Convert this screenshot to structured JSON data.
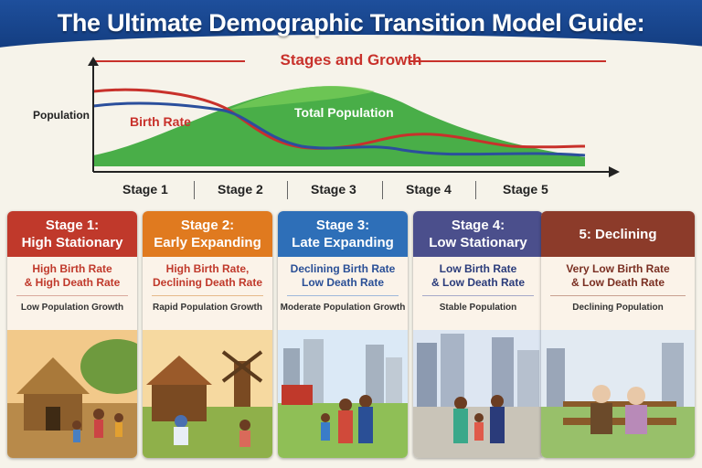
{
  "header": {
    "title": "The Ultimate Demographic Transition Model Guide:",
    "subtitle": "Stages and Growth"
  },
  "chart": {
    "ylabel": "Population",
    "series_labels": {
      "birth_rate": "Birth Rate",
      "total_population": "Total Population"
    },
    "colors": {
      "birth_rate": "#c8312b",
      "death_rate": "#2b4f9c",
      "total_population": "#3aa83a"
    }
  },
  "stages_axis": [
    "Stage 1",
    "Stage 2",
    "Stage 3",
    "Stage 4",
    "Stage 5"
  ],
  "cards": [
    {
      "title_line1": "Stage 1:",
      "title_line2": "High Stationary",
      "rate_line1": "High Birth Rate",
      "rate_line2": "& High Death Rate",
      "growth": "Low Population Growth",
      "color": "#c0392b",
      "text_color": "#c0392b"
    },
    {
      "title_line1": "Stage 2:",
      "title_line2": "Early Expanding",
      "rate_line1": "High Birth Rate,",
      "rate_line2": "Declining Death Rate",
      "growth": "Rapid Population Growth",
      "color": "#e07a1f",
      "text_color": "#c0392b"
    },
    {
      "title_line1": "Stage 3:",
      "title_line2": "Late Expanding",
      "rate_line1": "Declining Birth Rate",
      "rate_line2": "Low Death Rate",
      "growth": "Moderate Population Growth",
      "color": "#2e6fb8",
      "text_color": "#2a4f96"
    },
    {
      "title_line1": "Stage 4:",
      "title_line2": "Low Stationary",
      "rate_line1": "Low Birth Rate",
      "rate_line2": "& Low Death Rate",
      "growth": "Stable Population",
      "color": "#4b4f8c",
      "text_color": "#2a3b7a"
    },
    {
      "title_line1": "5: Declining",
      "title_line2": "",
      "rate_line1": "Very Low Birth Rate",
      "rate_line2": "& Low Death Rate",
      "growth": "Declining Population",
      "color": "#8c3b2a",
      "text_color": "#7a2f22"
    }
  ]
}
